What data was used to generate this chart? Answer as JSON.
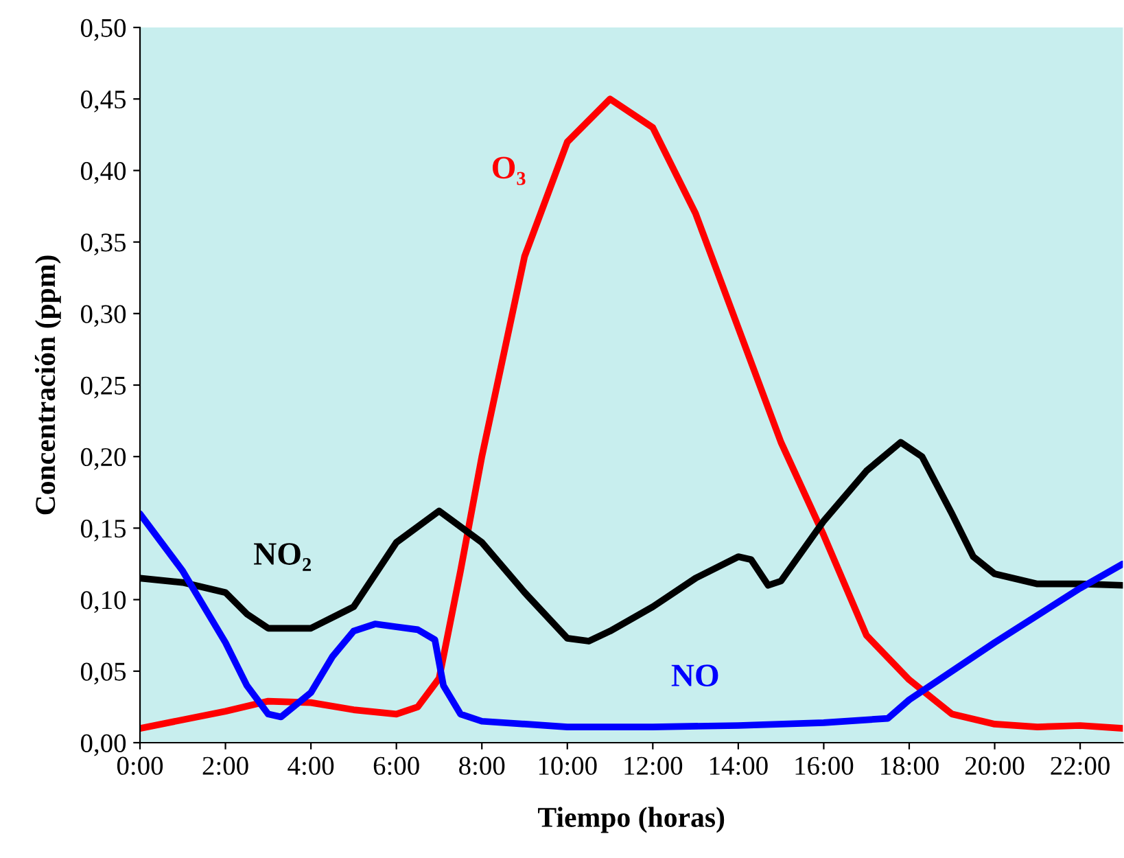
{
  "chart_data": {
    "type": "line",
    "xlabel": "Tiempo (horas)",
    "ylabel": "Concentración (ppm)",
    "xlim": [
      0,
      23
    ],
    "ylim": [
      0,
      0.5
    ],
    "xticks": [
      {
        "value": 0,
        "label": "0:00"
      },
      {
        "value": 2,
        "label": "2:00"
      },
      {
        "value": 4,
        "label": "4:00"
      },
      {
        "value": 6,
        "label": "6:00"
      },
      {
        "value": 8,
        "label": "8:00"
      },
      {
        "value": 10,
        "label": "10:00"
      },
      {
        "value": 12,
        "label": "12:00"
      },
      {
        "value": 14,
        "label": "14:00"
      },
      {
        "value": 16,
        "label": "16:00"
      },
      {
        "value": 18,
        "label": "18:00"
      },
      {
        "value": 20,
        "label": "20:00"
      },
      {
        "value": 22,
        "label": "22:00"
      }
    ],
    "yticks": [
      {
        "value": 0,
        "label": "0,00"
      },
      {
        "value": 0.05,
        "label": "0,05"
      },
      {
        "value": 0.1,
        "label": "0,10"
      },
      {
        "value": 0.15,
        "label": "0,15"
      },
      {
        "value": 0.2,
        "label": "0,20"
      },
      {
        "value": 0.25,
        "label": "0,25"
      },
      {
        "value": 0.3,
        "label": "0,30"
      },
      {
        "value": 0.35,
        "label": "0,35"
      },
      {
        "value": 0.4,
        "label": "0,40"
      },
      {
        "value": 0.45,
        "label": "0,45"
      },
      {
        "value": 0.5,
        "label": "0,50"
      }
    ],
    "grid": false,
    "marker": "none",
    "line_style": "solid",
    "series": [
      {
        "name": "O₃",
        "color": "#ff0000",
        "x": [
          0,
          2,
          3,
          4,
          5,
          6,
          6.5,
          7,
          7.5,
          8,
          9,
          10,
          11,
          12,
          13,
          14,
          15,
          16,
          17,
          18,
          19,
          20,
          21,
          22,
          23
        ],
        "values": [
          0.01,
          0.022,
          0.029,
          0.028,
          0.023,
          0.02,
          0.025,
          0.045,
          0.12,
          0.2,
          0.34,
          0.42,
          0.45,
          0.43,
          0.37,
          0.29,
          0.21,
          0.145,
          0.075,
          0.044,
          0.02,
          0.013,
          0.011,
          0.012,
          0.01
        ]
      },
      {
        "name": "NO₂",
        "color": "#000000",
        "x": [
          0,
          1,
          2,
          2.5,
          3,
          4,
          5,
          6,
          7,
          8,
          9,
          10,
          10.5,
          11,
          12,
          13,
          14,
          14.3,
          14.7,
          15,
          16,
          17,
          17.8,
          18.3,
          19,
          19.5,
          20,
          21,
          22,
          23
        ],
        "values": [
          0.115,
          0.112,
          0.105,
          0.09,
          0.08,
          0.08,
          0.095,
          0.14,
          0.162,
          0.14,
          0.105,
          0.073,
          0.071,
          0.078,
          0.095,
          0.115,
          0.13,
          0.128,
          0.11,
          0.113,
          0.155,
          0.19,
          0.21,
          0.2,
          0.16,
          0.13,
          0.118,
          0.111,
          0.111,
          0.11
        ]
      },
      {
        "name": "NO",
        "color": "#0000ff",
        "x": [
          0,
          1,
          2,
          2.5,
          3,
          3.3,
          4,
          4.5,
          5,
          5.5,
          6,
          6.5,
          6.9,
          7.1,
          7.5,
          8,
          10,
          12,
          14,
          16,
          17.5,
          18,
          20,
          22,
          23
        ],
        "values": [
          0.16,
          0.12,
          0.07,
          0.04,
          0.02,
          0.018,
          0.035,
          0.06,
          0.078,
          0.083,
          0.081,
          0.079,
          0.072,
          0.04,
          0.02,
          0.015,
          0.011,
          0.011,
          0.012,
          0.014,
          0.017,
          0.03,
          0.07,
          0.108,
          0.125
        ]
      }
    ]
  }
}
